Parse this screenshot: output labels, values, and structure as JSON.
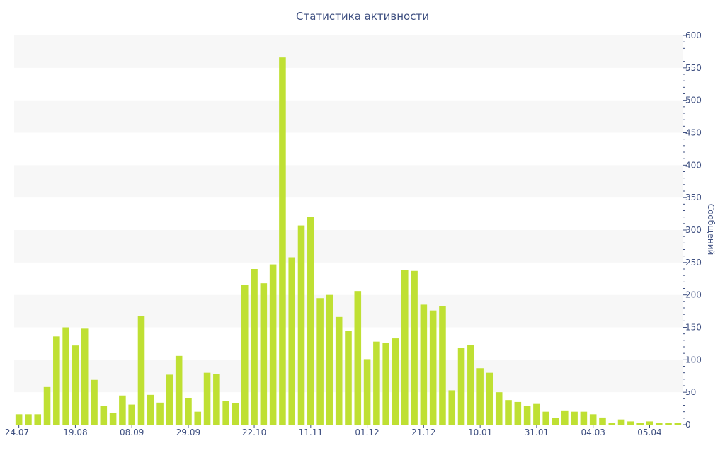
{
  "chart_data": {
    "type": "bar",
    "title": "Статистика активности",
    "ylabel": "Сообщений",
    "y_axis_position": "right",
    "ylim": [
      0,
      600
    ],
    "y_ticks": [
      0,
      50,
      100,
      150,
      200,
      250,
      300,
      350,
      400,
      450,
      500,
      550,
      600
    ],
    "x_tick_labels": [
      "24.07",
      "19.08",
      "08.09",
      "29.09",
      "22.10",
      "11.11",
      "01.12",
      "21.12",
      "10.01",
      "31.01",
      "04.03",
      "05.04"
    ],
    "x_tick_bar_index": [
      0,
      6,
      12,
      18,
      25,
      31,
      37,
      43,
      49,
      55,
      61,
      67
    ],
    "grid": "alternating horizontal bands",
    "legend": "none",
    "bar_color": "#bfe033",
    "values": [
      16,
      16,
      16,
      58,
      136,
      150,
      122,
      148,
      69,
      29,
      18,
      45,
      31,
      168,
      46,
      34,
      77,
      106,
      41,
      20,
      80,
      78,
      36,
      33,
      215,
      240,
      218,
      247,
      566,
      258,
      307,
      320,
      195,
      200,
      166,
      145,
      206,
      101,
      128,
      126,
      133,
      238,
      237,
      185,
      176,
      183,
      53,
      118,
      123,
      87,
      80,
      50,
      38,
      35,
      29,
      32,
      20,
      10,
      22,
      20,
      20,
      16,
      11,
      3,
      8,
      5,
      3,
      5,
      3,
      3,
      3
    ]
  }
}
